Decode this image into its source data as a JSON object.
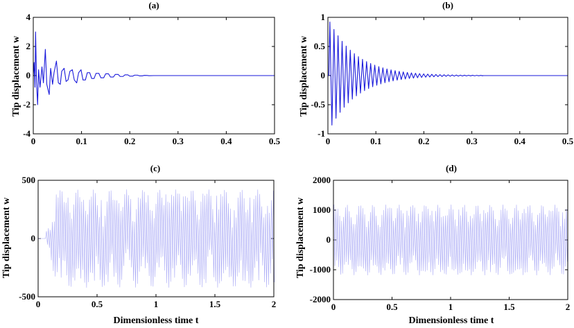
{
  "chart_data": [
    {
      "type": "line",
      "title": "(a)",
      "xlabel": "",
      "ylabel": "Tip displacement w",
      "xlim": [
        0,
        0.5
      ],
      "ylim": [
        -4,
        4
      ],
      "xticks": [
        0,
        0.1,
        0.2,
        0.3,
        0.4,
        0.5
      ],
      "yticks": [
        -4,
        -2,
        0,
        2,
        4
      ],
      "xtick_labels": [
        "0",
        "0.1",
        "0.2",
        "0.3",
        "0.4",
        "0.5"
      ],
      "ytick_labels": [
        "-4",
        "-2",
        "0",
        "2",
        "4"
      ],
      "grid": false,
      "color": "#1a1adb",
      "series": [
        {
          "x": [
            0,
            0.0018,
            0.0035,
            0.0048,
            0.0068,
            0.009,
            0.011,
            0.014,
            0.018,
            0.021,
            0.025,
            0.028,
            0.033,
            0.036,
            0.04,
            0.043,
            0.048,
            0.052,
            0.056,
            0.059,
            0.064,
            0.068,
            0.072,
            0.076,
            0.081,
            0.085,
            0.09,
            0.094,
            0.099,
            0.103,
            0.108,
            0.112,
            0.117,
            0.121,
            0.126,
            0.13,
            0.136,
            0.14,
            0.146,
            0.15,
            0.156,
            0.16,
            0.166,
            0.17,
            0.176,
            0.18,
            0.186,
            0.19,
            0.196,
            0.2,
            0.206,
            0.21,
            0.216,
            0.22,
            0.226,
            0.23,
            0.236,
            0.24,
            0.25,
            0.5
          ],
          "y": [
            0,
            0.9,
            -0.8,
            3.0,
            -0.5,
            -2.0,
            0.4,
            -0.8,
            0.6,
            -0.5,
            1.8,
            -0.6,
            -1.3,
            0.5,
            -0.6,
            0.2,
            1.0,
            -0.5,
            -0.6,
            0.3,
            0.5,
            -0.4,
            -0.3,
            0.3,
            0.4,
            -0.3,
            -0.5,
            0.2,
            0.4,
            -0.3,
            -0.3,
            0.2,
            0.2,
            -0.2,
            -0.2,
            0.15,
            0.15,
            -0.15,
            -0.15,
            0.12,
            0.12,
            -0.1,
            -0.1,
            0.08,
            0.08,
            -0.06,
            -0.06,
            0.05,
            0.05,
            -0.04,
            -0.04,
            0.03,
            0.03,
            -0.02,
            -0.02,
            0.015,
            0.01,
            -0.01,
            0,
            0
          ]
        }
      ]
    },
    {
      "type": "line",
      "title": "(b)",
      "xlabel": "",
      "ylabel": "Tip displacement w",
      "xlim": [
        0,
        0.5
      ],
      "ylim": [
        -1,
        1
      ],
      "xticks": [
        0,
        0.1,
        0.2,
        0.3,
        0.4,
        0.5
      ],
      "yticks": [
        -1,
        -0.5,
        0,
        0.5,
        1
      ],
      "xtick_labels": [
        "0",
        "0.1",
        "0.2",
        "0.3",
        "0.4",
        "0.5"
      ],
      "ytick_labels": [
        "-1",
        "-0.5",
        "0",
        "0.5",
        "1"
      ],
      "grid": false,
      "color": "#1a1adb",
      "series": [
        {
          "oscillation": {
            "t0": 0.002,
            "period": 0.0085,
            "pos_amp": 0.92,
            "neg_amp": -0.85,
            "decay_rate": 17.5,
            "end": 0.32
          }
        }
      ]
    },
    {
      "type": "line",
      "title": "(c)",
      "xlabel": "Dimensionless time t",
      "ylabel": "Tip displacement w",
      "xlim": [
        0,
        2
      ],
      "ylim": [
        -500,
        500
      ],
      "xticks": [
        0,
        0.5,
        1,
        1.5,
        2
      ],
      "yticks": [
        -500,
        0,
        500
      ],
      "xtick_labels": [
        "0",
        "0.5",
        "1",
        "1.5",
        "2"
      ],
      "ytick_labels": [
        "-500",
        "0",
        "500"
      ],
      "grid": false,
      "color": "#a6a6f5",
      "series": [
        {
          "oscillation": {
            "t0": 0.05,
            "period": 0.0166,
            "amp": 420,
            "growth_end": 0.15,
            "env_min": 0.2,
            "env_ripples": 14
          }
        }
      ]
    },
    {
      "type": "line",
      "title": "(d)",
      "xlabel": "Dimensionless time t",
      "ylabel": "Tip displacement w",
      "xlim": [
        0,
        2
      ],
      "ylim": [
        -2000,
        2000
      ],
      "xticks": [
        0,
        0.5,
        1,
        1.5,
        2
      ],
      "yticks": [
        -2000,
        -1000,
        0,
        1000,
        2000
      ],
      "xtick_labels": [
        "0",
        "0.5",
        "1",
        "1.5",
        "2"
      ],
      "ytick_labels": [
        "-2000",
        "-1000",
        "0",
        "1000",
        "2000"
      ],
      "grid": false,
      "color": "#a6a6f5",
      "series": [
        {
          "oscillation": {
            "t0": 0.0,
            "period": 0.0164,
            "amp": 1180,
            "growth_end": 0.0,
            "env_min": 0.35,
            "env_ripples": 18
          }
        }
      ]
    }
  ]
}
